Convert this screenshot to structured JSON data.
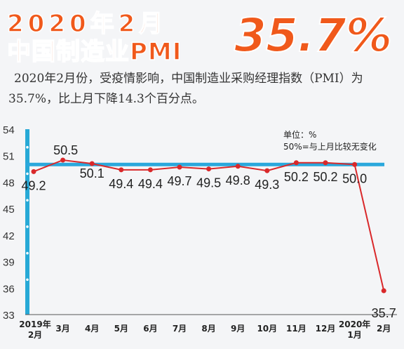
{
  "header": {
    "title_line1": "2020年2月",
    "title_line2": "中国制造业PMI",
    "headline_value": "35.7%"
  },
  "description": "2020年2月份，受疫情影响，中国制造业采购经理指数（PMI）为35.7%，比上月下降14.3个百分点。",
  "colors": {
    "orange": "#f0591b",
    "line": "#d9282a",
    "band": "#27a9d6",
    "reference": "#2aa8dc"
  },
  "chart_data": {
    "type": "line",
    "categories": [
      "2019年\n2月",
      "3月",
      "4月",
      "5月",
      "6月",
      "7月",
      "8月",
      "9月",
      "10月",
      "11月",
      "12月",
      "2020年\n1月",
      "2月"
    ],
    "values": [
      49.2,
      50.5,
      50.1,
      49.4,
      49.4,
      49.7,
      49.5,
      49.8,
      49.3,
      50.2,
      50.2,
      50.0,
      35.7
    ],
    "data_labels": [
      "49.2",
      "50.5",
      "50.1",
      "49.4",
      "49.4",
      "49.7",
      "49.5",
      "49.8",
      "49.3",
      "50.2",
      "50.2",
      "50.0",
      "35.7"
    ],
    "ylim": [
      33,
      54
    ],
    "yticks": [
      "54",
      "51",
      "48",
      "45",
      "42",
      "39",
      "36",
      "33"
    ],
    "reference_line": 50,
    "unit_note": "单位：%",
    "reference_note": "50%=与上月比较无变化"
  }
}
